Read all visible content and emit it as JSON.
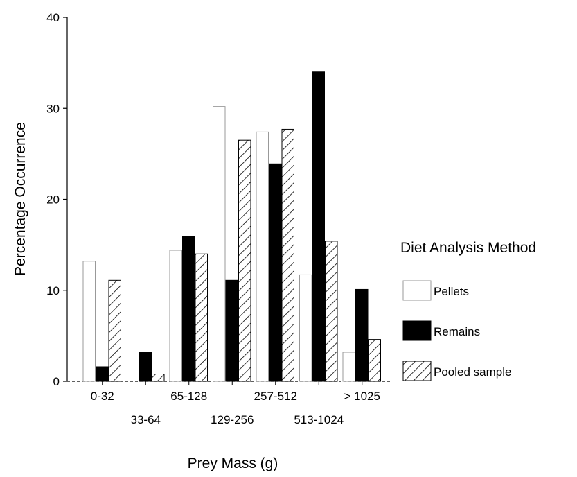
{
  "chart_data": {
    "type": "bar",
    "title": "",
    "xlabel": "Prey Mass (g)",
    "ylabel": "Percentage Occurrence",
    "ylim": [
      0,
      40
    ],
    "yticks": [
      0,
      10,
      20,
      30,
      40
    ],
    "categories": [
      "0-32",
      "33-64",
      "65-128",
      "129-256",
      "257-512",
      "513-1024",
      "> 1025"
    ],
    "series": [
      {
        "name": "Pellets",
        "values": [
          13.2,
          0,
          14.4,
          30.2,
          27.4,
          11.7,
          3.2
        ]
      },
      {
        "name": "Remains",
        "values": [
          1.6,
          3.2,
          15.9,
          11.1,
          23.9,
          34.0,
          10.1
        ]
      },
      {
        "name": "Pooled sample",
        "values": [
          11.1,
          0.8,
          14.0,
          26.5,
          27.7,
          15.4,
          4.6
        ]
      }
    ],
    "legend": {
      "title": "Diet Analysis Method",
      "position": "right"
    },
    "grid": false
  }
}
